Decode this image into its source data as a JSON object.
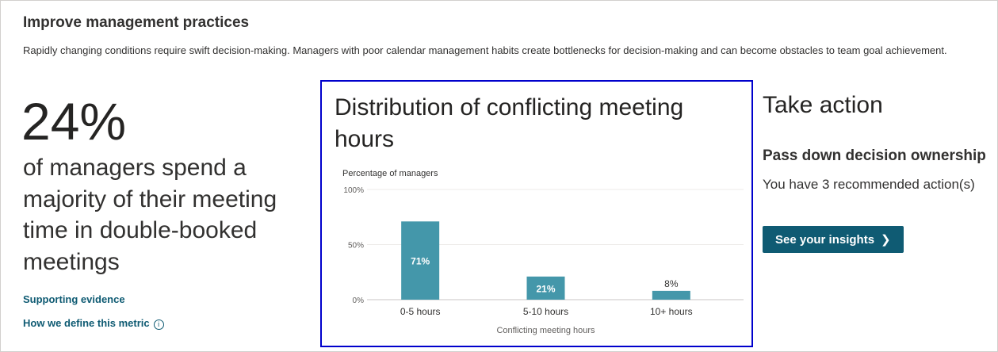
{
  "section": {
    "title": "Improve management practices",
    "description": "Rapidly changing conditions require swift decision-making. Managers with poor calendar management habits create bottlenecks for decision-making and can become obstacles to team goal achievement."
  },
  "metric": {
    "value": "24%",
    "text": "of managers spend a majority of their meeting time in double-booked meetings"
  },
  "links": {
    "supporting_evidence": "Supporting evidence",
    "define_metric": "How we define this metric",
    "info_icon": "info-icon"
  },
  "chart_title": "Distribution of conflicting meeting hours",
  "chart_data": {
    "type": "bar",
    "title": "Distribution of conflicting meeting hours",
    "ylabel": "Percentage of managers",
    "xlabel": "Conflicting meeting hours",
    "categories": [
      "0-5 hours",
      "5-10 hours",
      "10+ hours"
    ],
    "values": [
      71,
      21,
      8
    ],
    "data_labels": [
      "71%",
      "21%",
      "8%"
    ],
    "yticks": [
      "100%",
      "50%",
      "0%"
    ],
    "ylim": [
      0,
      100
    ],
    "grid": true,
    "bar_color": "#4497aa"
  },
  "action": {
    "title": "Take action",
    "subtitle": "Pass down decision ownership",
    "text": "You have 3 recommended action(s)",
    "button_label": "See your insights",
    "button_icon": "chevron-right-icon",
    "button_color": "#0f5b73"
  }
}
